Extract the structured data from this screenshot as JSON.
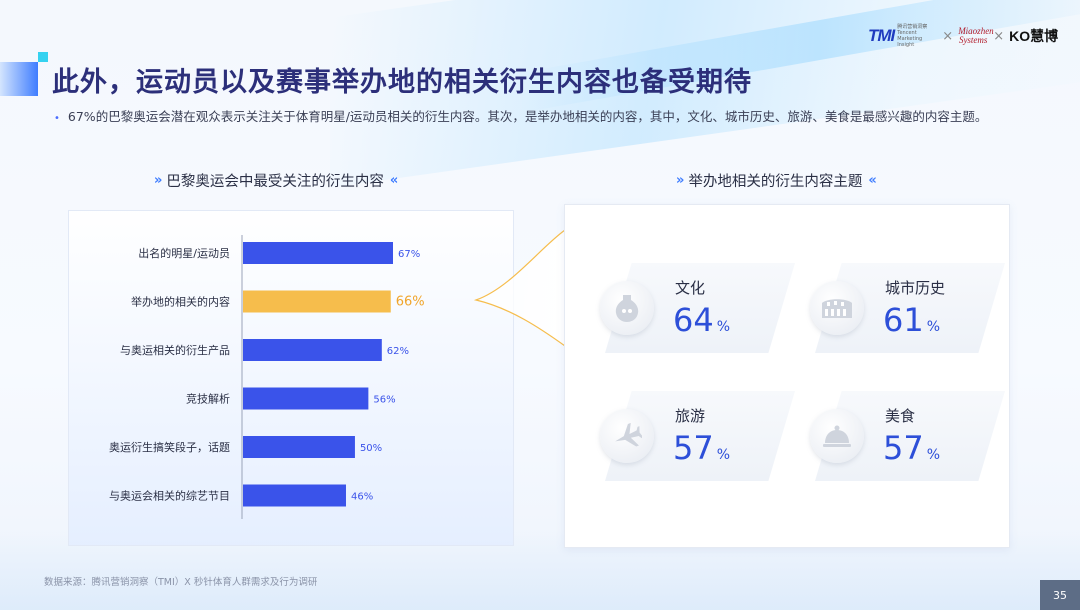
{
  "header": {
    "title": "此外，运动员以及赛事举办地的相关衍生内容也备受期待",
    "summary": "67%的巴黎奥运会潜在观众表示关注关于体育明星/运动员相关的衍生内容。其次，是举办地相关的内容，其中，文化、城市历史、旅游、美食是最感兴趣的内容主题。"
  },
  "logos": {
    "tmi": "TMI",
    "tmi_sub": "腾讯营销洞察 Tencent Marketing Insight",
    "separator": "×",
    "miaozhen": "Miaozhen Systems",
    "k_logo": "KO慧博"
  },
  "left_section": {
    "title": "巴黎奥运会中最受关注的衍生内容"
  },
  "right_section": {
    "title": "举办地相关的衍生内容主题"
  },
  "colors": {
    "bar_default": "#3a53ea",
    "bar_highlight": "#f6bd4c",
    "label_default": "#3a53ea",
    "label_highlight": "#f0a52b",
    "accent": "#2d4fd8"
  },
  "chart_data": [
    {
      "type": "bar",
      "orientation": "horizontal",
      "title": "巴黎奥运会中最受关注的衍生内容",
      "categories": [
        "出名的明星/运动员",
        "举办地的相关的内容",
        "与奥运相关的衍生产品",
        "竞技解析",
        "奥运衍生搞笑段子，话题",
        "与奥运会相关的综艺节目"
      ],
      "values": [
        67,
        66,
        62,
        56,
        50,
        46
      ],
      "value_labels": [
        "67%",
        "66%",
        "62%",
        "56%",
        "50%",
        "46%"
      ],
      "highlight_index": 1,
      "unit": "%",
      "xlim": [
        0,
        100
      ],
      "grid": false
    }
  ],
  "topics": [
    {
      "name": "文化",
      "value": "64",
      "unit": "%",
      "icon": "vase-icon"
    },
    {
      "name": "城市历史",
      "value": "61",
      "unit": "%",
      "icon": "colosseum-icon"
    },
    {
      "name": "旅游",
      "value": "57",
      "unit": "%",
      "icon": "airplane-icon"
    },
    {
      "name": "美食",
      "value": "57",
      "unit": "%",
      "icon": "cloche-icon"
    }
  ],
  "footer": {
    "source": "数据来源：腾讯营销洞察（TMI）X 秒针体育人群需求及行为调研",
    "page_number": "35"
  }
}
